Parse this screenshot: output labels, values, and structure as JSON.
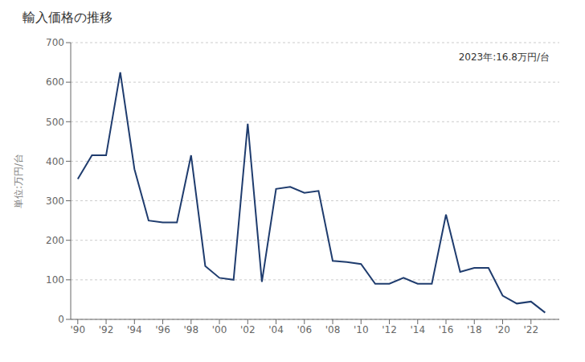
{
  "chart_data": {
    "type": "line",
    "title": "輸入価格の推移",
    "ylabel": "単位:万円/台",
    "annotation": "2023年:16.8万円/台",
    "color": "#1f3c6e",
    "x": [
      1990,
      1991,
      1992,
      1993,
      1994,
      1995,
      1996,
      1997,
      1998,
      1999,
      2000,
      2001,
      2002,
      2003,
      2004,
      2005,
      2006,
      2007,
      2008,
      2009,
      2010,
      2011,
      2012,
      2013,
      2014,
      2015,
      2016,
      2017,
      2018,
      2019,
      2020,
      2021,
      2022,
      2023
    ],
    "values": [
      355,
      415,
      415,
      625,
      380,
      250,
      245,
      245,
      415,
      135,
      105,
      100,
      495,
      95,
      330,
      335,
      320,
      325,
      148,
      145,
      140,
      90,
      90,
      105,
      90,
      90,
      265,
      120,
      130,
      130,
      60,
      40,
      45,
      17
    ],
    "xlim": [
      1989.5,
      2024.0
    ],
    "xticks": [
      {
        "value": 1990,
        "label": "'90"
      },
      {
        "value": 1992,
        "label": "'92"
      },
      {
        "value": 1994,
        "label": "'94"
      },
      {
        "value": 1996,
        "label": "'96"
      },
      {
        "value": 1998,
        "label": "'98"
      },
      {
        "value": 2000,
        "label": "'00"
      },
      {
        "value": 2002,
        "label": "'02"
      },
      {
        "value": 2004,
        "label": "'04"
      },
      {
        "value": 2006,
        "label": "'06"
      },
      {
        "value": 2008,
        "label": "'08"
      },
      {
        "value": 2010,
        "label": "'10"
      },
      {
        "value": 2012,
        "label": "'12"
      },
      {
        "value": 2014,
        "label": "'14"
      },
      {
        "value": 2016,
        "label": "'16"
      },
      {
        "value": 2018,
        "label": "'18"
      },
      {
        "value": 2020,
        "label": "'20"
      },
      {
        "value": 2022,
        "label": "'22"
      }
    ],
    "ylim": [
      0,
      700
    ],
    "yticks": [
      0,
      100,
      200,
      300,
      400,
      500,
      600,
      700
    ],
    "grid": "y"
  }
}
